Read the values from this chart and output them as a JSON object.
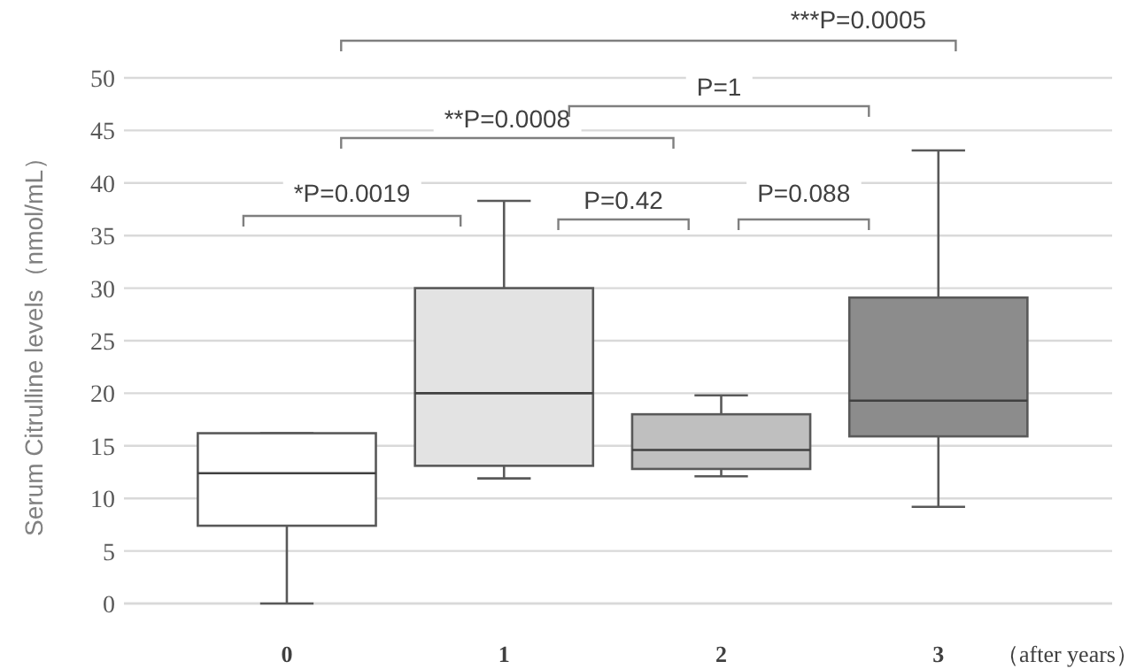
{
  "chart_data": {
    "type": "box",
    "xlabel": "（after years）",
    "ylabel": "Serum Citrulline levels（nmol/mL）",
    "categories": [
      "0",
      "1",
      "2",
      "3"
    ],
    "boxes": [
      {
        "low": 0,
        "q1": 7.4,
        "median": 12.4,
        "q3": 16.2,
        "high": 16.2
      },
      {
        "low": 11.9,
        "q1": 13.1,
        "median": 20,
        "q3": 30,
        "high": 38.3
      },
      {
        "low": 12.1,
        "q1": 12.8,
        "median": 14.6,
        "q3": 18,
        "high": 19.8
      },
      {
        "low": 9.2,
        "q1": 15.9,
        "median": 19.3,
        "q3": 29.1,
        "high": 43.1
      }
    ],
    "colors": [
      "#ffffff",
      "#e3e3e3",
      "#bfbfbf",
      "#8c8c8c"
    ],
    "ylim": [
      0,
      50
    ],
    "yticks": [
      0,
      5,
      10,
      15,
      20,
      25,
      30,
      35,
      40,
      45,
      50
    ],
    "grid": "y",
    "annotations": [
      "*P=0.0019",
      "**P=0.0008",
      "***P=0.0005",
      "P=1",
      "P=0.42",
      "P=0.088"
    ]
  }
}
